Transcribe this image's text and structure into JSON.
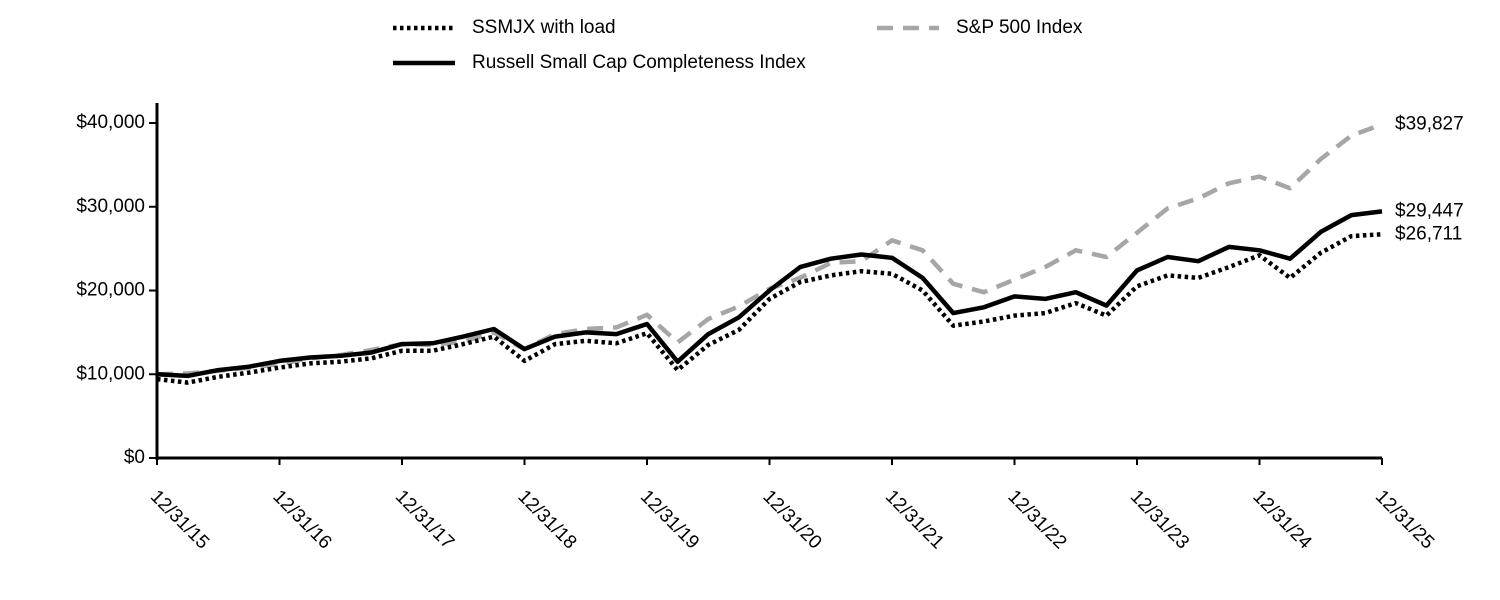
{
  "chart_data": {
    "type": "line",
    "x": [
      "12/31/15",
      null,
      null,
      null,
      "12/31/16",
      null,
      null,
      null,
      "12/31/17",
      null,
      null,
      null,
      "12/31/18",
      null,
      null,
      null,
      "12/31/19",
      null,
      null,
      null,
      "12/31/20",
      null,
      null,
      null,
      "12/31/21",
      null,
      null,
      null,
      "12/31/22",
      null,
      null,
      null,
      "12/31/23",
      null,
      null,
      null,
      "12/31/24",
      null,
      null,
      null,
      "12/31/25"
    ],
    "ylim": [
      0,
      40000
    ],
    "yticks": [
      {
        "value": 0,
        "label": "$0"
      },
      {
        "value": 10000,
        "label": "$10,000"
      },
      {
        "value": 20000,
        "label": "$20,000"
      },
      {
        "value": 30000,
        "label": "$30,000"
      },
      {
        "value": 40000,
        "label": "$40,000"
      }
    ],
    "legend": "top",
    "series": [
      {
        "name": "SSMJX with load",
        "color": "#000000",
        "dash": "dotted",
        "values": [
          9425,
          9000,
          9700,
          10200,
          10800,
          11300,
          11500,
          11900,
          12800,
          12800,
          13600,
          14500,
          11600,
          13600,
          14000,
          13700,
          14900,
          10500,
          13500,
          15300,
          19000,
          21000,
          21800,
          22300,
          22000,
          20000,
          15800,
          16300,
          17000,
          17300,
          18500,
          17000,
          20500,
          21800,
          21500,
          22800,
          24200,
          21500,
          24500,
          26500,
          26711
        ],
        "value_labels": [
          null,
          null,
          null,
          null,
          null,
          null,
          null,
          null,
          null,
          null,
          null,
          null,
          null,
          null,
          null,
          null,
          null,
          null,
          null,
          null,
          null,
          null,
          null,
          null,
          null,
          null,
          null,
          null,
          null,
          null,
          null,
          null,
          null,
          null,
          null,
          null,
          null,
          null,
          null,
          null,
          "$26,711"
        ]
      },
      {
        "name": "S&P 500 Index",
        "color": "#a6a6a6",
        "dash": "dashed",
        "values": [
          10000,
          10100,
          10400,
          10800,
          11200,
          11900,
          12300,
          12900,
          13600,
          13500,
          13900,
          15000,
          13000,
          14800,
          15400,
          15600,
          17100,
          13800,
          16600,
          18100,
          20200,
          21500,
          23300,
          23500,
          26000,
          24800,
          20800,
          19800,
          21300,
          22800,
          24800,
          24000,
          26900,
          29800,
          31000,
          32800,
          33600,
          32200,
          35700,
          38500,
          39827
        ],
        "value_labels": [
          null,
          null,
          null,
          null,
          null,
          null,
          null,
          null,
          null,
          null,
          null,
          null,
          null,
          null,
          null,
          null,
          null,
          null,
          null,
          null,
          null,
          null,
          null,
          null,
          null,
          null,
          null,
          null,
          null,
          null,
          null,
          null,
          null,
          null,
          null,
          null,
          null,
          null,
          null,
          null,
          "$39,827"
        ]
      },
      {
        "name": "Russell Small Cap Completeness Index",
        "color": "#000000",
        "dash": "solid",
        "values": [
          10000,
          9800,
          10500,
          10900,
          11600,
          12000,
          12200,
          12600,
          13600,
          13700,
          14500,
          15400,
          13000,
          14500,
          15000,
          14800,
          16000,
          11500,
          14800,
          16800,
          20000,
          22800,
          23800,
          24300,
          23900,
          21500,
          17300,
          18000,
          19300,
          19000,
          19800,
          18200,
          22400,
          24000,
          23500,
          25200,
          24800,
          23800,
          27000,
          29000,
          29447
        ],
        "value_labels": [
          null,
          null,
          null,
          null,
          null,
          null,
          null,
          null,
          null,
          null,
          null,
          null,
          null,
          null,
          null,
          null,
          null,
          null,
          null,
          null,
          null,
          null,
          null,
          null,
          null,
          null,
          null,
          null,
          null,
          null,
          null,
          null,
          null,
          null,
          null,
          null,
          null,
          null,
          null,
          null,
          "$29,447"
        ]
      }
    ]
  }
}
